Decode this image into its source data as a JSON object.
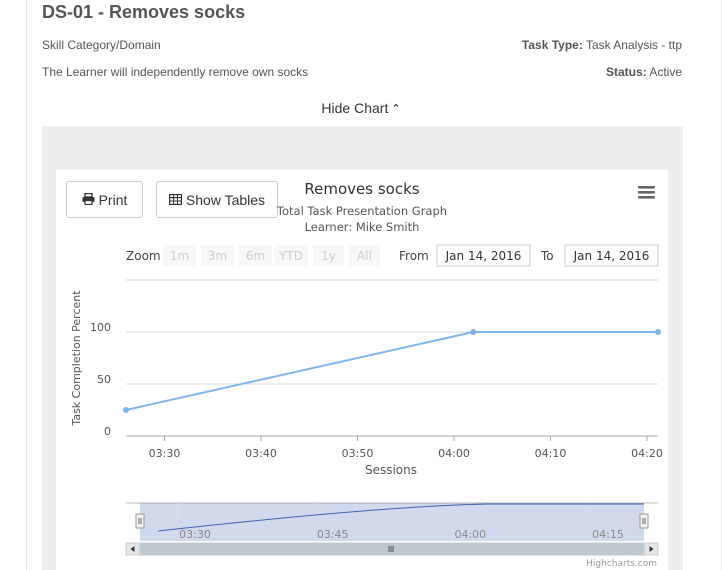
{
  "header": {
    "title": "DS-01 - Removes socks",
    "skill_category": "Skill Category/Domain",
    "description": "The Learner will independently remove own socks",
    "task_type_label": "Task Type:",
    "task_type_value": "Task Analysis - ttp",
    "status_label": "Status:",
    "status_value": "Active"
  },
  "toggle": {
    "hide_chart_label": "Hide Chart"
  },
  "toolbar": {
    "print_label": "Print",
    "show_tables_label": "Show Tables"
  },
  "chart": {
    "title": "Removes socks",
    "subtitle": "Total Task Presentation Graph",
    "learner": "Learner: Mike Smith",
    "zoom_label": "Zoom",
    "zoom_buttons": [
      "1m",
      "3m",
      "6m",
      "YTD",
      "1y",
      "All"
    ],
    "from_label": "From",
    "from_value": "Jan 14, 2016",
    "to_label": "To",
    "to_value": "Jan 14, 2016",
    "credits": "Highcharts.com",
    "accent_color": "#7cb5ec"
  },
  "chart_data": {
    "type": "line",
    "x": [
      "03:26",
      "04:02",
      "04:22"
    ],
    "values": [
      25,
      100,
      100
    ],
    "xlabel": "Sessions",
    "ylabel": "Task Completion Percent",
    "xticks": [
      "03:30",
      "03:40",
      "03:50",
      "04:00",
      "04:10",
      "04:20"
    ],
    "yticks": [
      "0",
      "50",
      "100"
    ],
    "ylim": [
      0,
      100
    ],
    "navigator_ticks": [
      "03:30",
      "03:45",
      "04:00",
      "04:15"
    ],
    "grid": true
  }
}
